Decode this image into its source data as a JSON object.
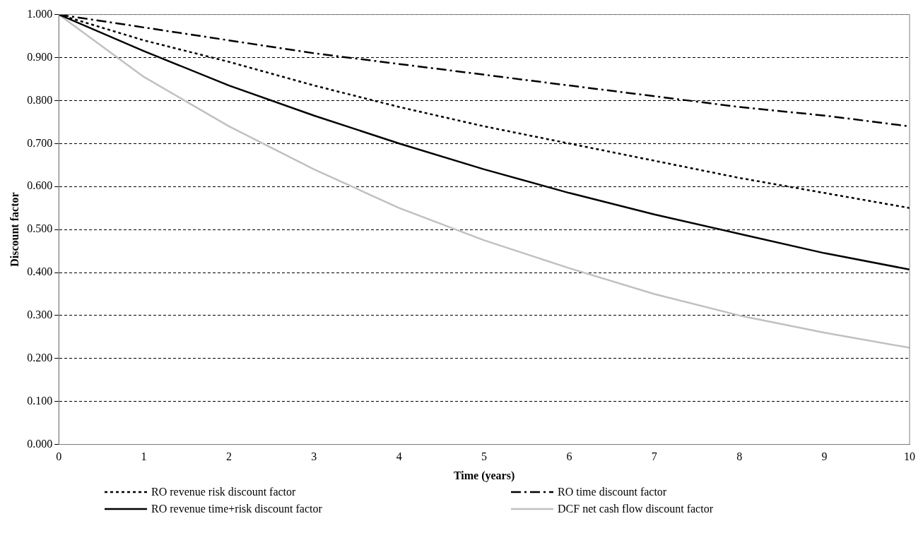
{
  "chart_data": {
    "type": "line",
    "xlabel": "Time (years)",
    "ylabel": "Discount factor",
    "x": [
      0,
      1,
      2,
      3,
      4,
      5,
      6,
      7,
      8,
      9,
      10
    ],
    "xlim": [
      0,
      10
    ],
    "xticks": [
      0,
      1,
      2,
      3,
      4,
      5,
      6,
      7,
      8,
      9,
      10
    ],
    "ylim": [
      0,
      1
    ],
    "yticks": [
      {
        "value": 0,
        "label": "0.000"
      },
      {
        "value": 0.1,
        "label": "0.100"
      },
      {
        "value": 0.2,
        "label": "0.200"
      },
      {
        "value": 0.3,
        "label": "0.300"
      },
      {
        "value": 0.4,
        "label": "0.400"
      },
      {
        "value": 0.5,
        "label": "0.500"
      },
      {
        "value": 0.6,
        "label": "0.600"
      },
      {
        "value": 0.7,
        "label": "0.700"
      },
      {
        "value": 0.8,
        "label": "0.800"
      },
      {
        "value": 0.9,
        "label": "0.900"
      },
      {
        "value": 1,
        "label": "1.000"
      }
    ],
    "grid": "y",
    "legend": "bottom",
    "marker": "none",
    "series": [
      {
        "name": "RO revenue risk discount factor",
        "color": "#000000",
        "line_style": "dotted",
        "values": [
          1,
          0.94,
          0.89,
          0.835,
          0.785,
          0.74,
          0.7,
          0.66,
          0.62,
          0.585,
          0.55
        ]
      },
      {
        "name": "RO time discount factor",
        "color": "#000000",
        "line_style": "dashed",
        "values": [
          1,
          0.97,
          0.94,
          0.91,
          0.885,
          0.86,
          0.835,
          0.81,
          0.785,
          0.765,
          0.74
        ]
      },
      {
        "name": "RO revenue time+risk discount factor",
        "color": "#000000",
        "line_style": "solid",
        "values": [
          1,
          0.915,
          0.835,
          0.765,
          0.7,
          0.64,
          0.585,
          0.535,
          0.49,
          0.445,
          0.407
        ]
      },
      {
        "name": "DCF net cash flow discount factor",
        "color": "#c0c0c0",
        "line_style": "solid",
        "values": [
          1,
          0.855,
          0.74,
          0.64,
          0.55,
          0.475,
          0.41,
          0.35,
          0.3,
          0.26,
          0.225
        ]
      }
    ]
  }
}
